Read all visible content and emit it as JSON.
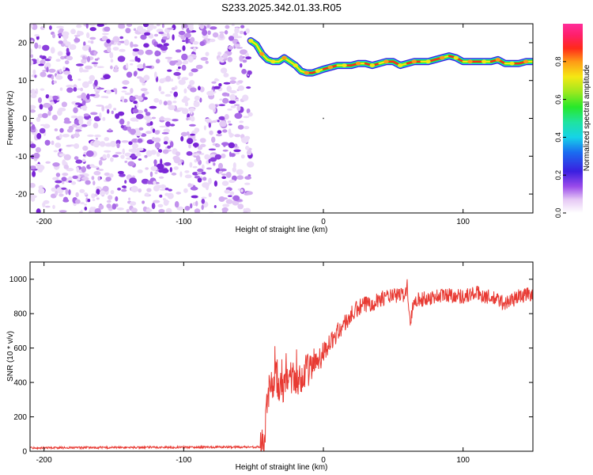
{
  "title": "S233.2025.342.01.33.R05",
  "chart_data": [
    {
      "type": "heatmap",
      "xlabel": "Height of straight line (km)",
      "ylabel": "Frequency (Hz)",
      "xlim": [
        -210,
        150
      ],
      "ylim": [
        -25,
        25
      ],
      "xticks": [
        -200,
        -100,
        0,
        100
      ],
      "xtick_labels": [
        "-200",
        "-100",
        "0",
        "100"
      ],
      "yticks": [
        20,
        10,
        0,
        -10,
        -20
      ],
      "ytick_labels": [
        "20",
        "10",
        "0",
        "-10",
        "-20"
      ],
      "noise_region": {
        "x_range": [
          -210,
          -52
        ],
        "note": "scattered low-amplitude speckle"
      },
      "ridge": {
        "x": [
          -52,
          -48,
          -44,
          -40,
          -36,
          -32,
          -28,
          -24,
          -20,
          -16,
          -12,
          -8,
          -4,
          0,
          5,
          10,
          15,
          20,
          25,
          30,
          35,
          40,
          45,
          50,
          55,
          60,
          65,
          70,
          75,
          80,
          85,
          90,
          95,
          100,
          105,
          110,
          115,
          120,
          125,
          130,
          135,
          140,
          145,
          150
        ],
        "freq": [
          20.5,
          19.5,
          17.0,
          15.5,
          15.0,
          15.0,
          16.0,
          15.0,
          14.0,
          12.5,
          12.0,
          12.0,
          12.5,
          13.0,
          13.5,
          14.0,
          14.0,
          14.0,
          14.5,
          14.5,
          14.0,
          14.5,
          15.0,
          15.0,
          14.0,
          14.5,
          15.0,
          15.0,
          15.0,
          15.5,
          16.0,
          16.5,
          16.0,
          15.0,
          15.0,
          15.0,
          15.0,
          15.0,
          15.5,
          14.5,
          14.5,
          14.5,
          15.0,
          15.0
        ]
      },
      "colorbar": {
        "label": "Normalized spectral amplitude",
        "range": [
          0,
          1
        ],
        "ticks": [
          0,
          0.2,
          0.4,
          0.6,
          0.8
        ],
        "tick_labels": [
          "0.0",
          "0.2",
          "0.4",
          "0.6",
          "0.8"
        ]
      }
    },
    {
      "type": "line",
      "xlabel": "Height of straight line (km)",
      "ylabel": "SNR (10 * v/v)",
      "xlim": [
        -210,
        150
      ],
      "ylim": [
        0,
        1100
      ],
      "xticks": [
        -200,
        -100,
        0,
        100
      ],
      "xtick_labels": [
        "-200",
        "-100",
        "0",
        "100"
      ],
      "yticks": [
        0,
        200,
        400,
        600,
        800,
        1000
      ],
      "ytick_labels": [
        "0",
        "200",
        "400",
        "600",
        "800",
        "1000"
      ],
      "series": [
        {
          "name": "SNR",
          "color": "#e83a33",
          "x": [
            -210,
            -45,
            -42,
            -40,
            -38,
            -36,
            -34,
            -32,
            -30,
            -28,
            -26,
            -24,
            -22,
            -20,
            -18,
            -16,
            -14,
            -12,
            -10,
            -8,
            -6,
            -4,
            -2,
            0,
            5,
            10,
            15,
            20,
            25,
            30,
            35,
            40,
            45,
            50,
            55,
            58,
            60,
            62,
            65,
            70,
            80,
            90,
            100,
            110,
            120,
            125,
            130,
            140,
            150
          ],
          "values": [
            20,
            25,
            80,
            300,
            420,
            360,
            460,
            330,
            420,
            350,
            460,
            370,
            430,
            390,
            420,
            440,
            430,
            480,
            470,
            500,
            520,
            540,
            560,
            580,
            630,
            690,
            740,
            790,
            830,
            850,
            870,
            880,
            900,
            900,
            910,
            910,
            960,
            740,
            890,
            880,
            900,
            910,
            900,
            920,
            890,
            880,
            860,
            900,
            920
          ]
        }
      ]
    }
  ]
}
